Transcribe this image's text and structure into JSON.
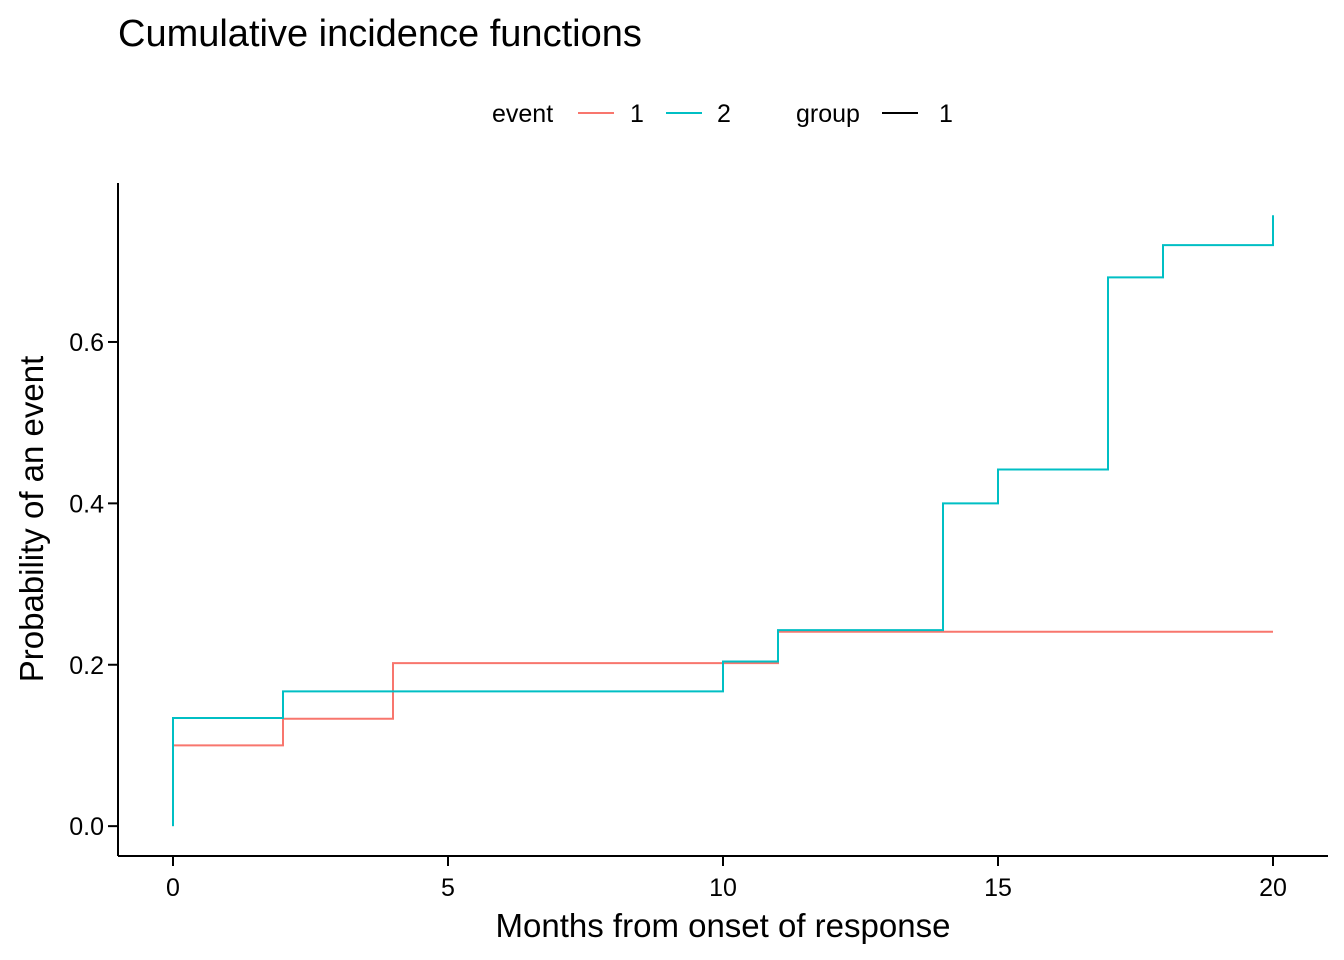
{
  "chart_data": {
    "type": "line",
    "step": true,
    "title": "Cumulative incidence functions",
    "xlabel": "Months from onset of response",
    "ylabel": "Probability of an event",
    "xlim": [
      -1,
      21
    ],
    "ylim": [
      -0.037,
      0.797
    ],
    "x_ticks": [
      0,
      5,
      10,
      15,
      20
    ],
    "x_tick_labels": [
      "0",
      "5",
      "10",
      "15",
      "20"
    ],
    "y_ticks": [
      0.0,
      0.2,
      0.4,
      0.6
    ],
    "y_tick_labels": [
      "0.0",
      "0.2",
      "0.4",
      "0.6"
    ],
    "grid": false,
    "legend": {
      "position": "top",
      "groups": [
        {
          "title": "event",
          "entries": [
            {
              "label": "1",
              "color": "#F8766D"
            },
            {
              "label": "2",
              "color": "#00BFC4"
            }
          ]
        },
        {
          "title": "group",
          "entries": [
            {
              "label": "1",
              "color": "#000000"
            }
          ]
        }
      ]
    },
    "series": [
      {
        "name": "1",
        "color": "#F8766D",
        "x": [
          0,
          0,
          2,
          4,
          10,
          11,
          14,
          20
        ],
        "y": [
          0.0,
          0.1,
          0.133,
          0.202,
          0.202,
          0.241,
          0.241,
          0.241
        ]
      },
      {
        "name": "2",
        "color": "#00BFC4",
        "x": [
          0,
          0,
          2,
          10,
          11,
          14,
          15,
          17,
          18,
          20
        ],
        "y": [
          0.0,
          0.134,
          0.167,
          0.204,
          0.243,
          0.4,
          0.442,
          0.68,
          0.72,
          0.757
        ]
      }
    ]
  }
}
